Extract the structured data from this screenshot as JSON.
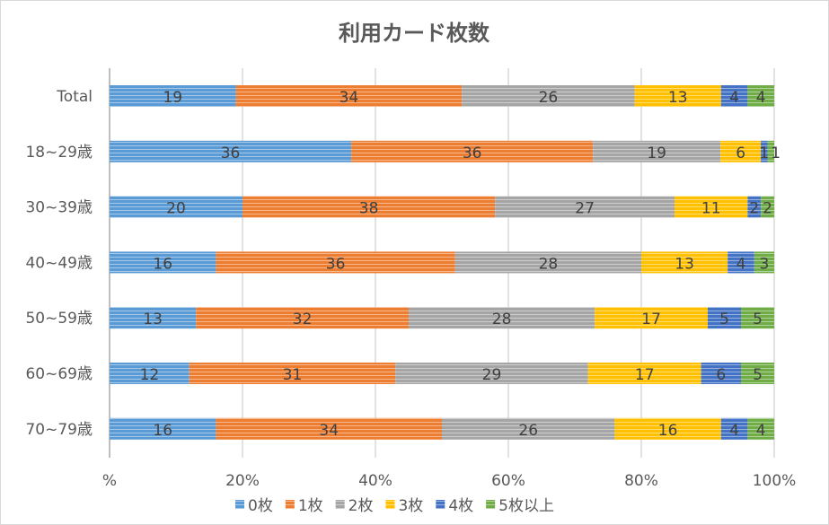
{
  "chart_data": {
    "type": "bar",
    "orientation": "horizontal",
    "stacked": "percent",
    "title": "利用カード枚数",
    "categories": [
      "Total",
      "18~29歳",
      "30~39歳",
      "40~49歳",
      "50~59歳",
      "60~69歳",
      "70~79歳"
    ],
    "series": [
      {
        "name": "0枚",
        "color": "#5b9bd5",
        "values": [
          19,
          36,
          20,
          16,
          13,
          12,
          16
        ]
      },
      {
        "name": "1枚",
        "color": "#ed7d31",
        "values": [
          34,
          36,
          38,
          36,
          32,
          31,
          34
        ]
      },
      {
        "name": "2枚",
        "color": "#a5a5a5",
        "values": [
          26,
          19,
          27,
          28,
          28,
          29,
          26
        ]
      },
      {
        "name": "3枚",
        "color": "#ffc000",
        "values": [
          13,
          6,
          11,
          13,
          17,
          17,
          16
        ]
      },
      {
        "name": "4枚",
        "color": "#4472c4",
        "values": [
          4,
          1,
          2,
          4,
          5,
          6,
          4
        ]
      },
      {
        "name": "5枚以上",
        "color": "#70ad47",
        "values": [
          4,
          1,
          2,
          3,
          5,
          5,
          4
        ]
      }
    ],
    "xlim": [
      0,
      100
    ],
    "xticks": [
      "%",
      "20%",
      "40%",
      "60%",
      "80%",
      "100%"
    ],
    "grid": true,
    "legend": "bottom"
  }
}
